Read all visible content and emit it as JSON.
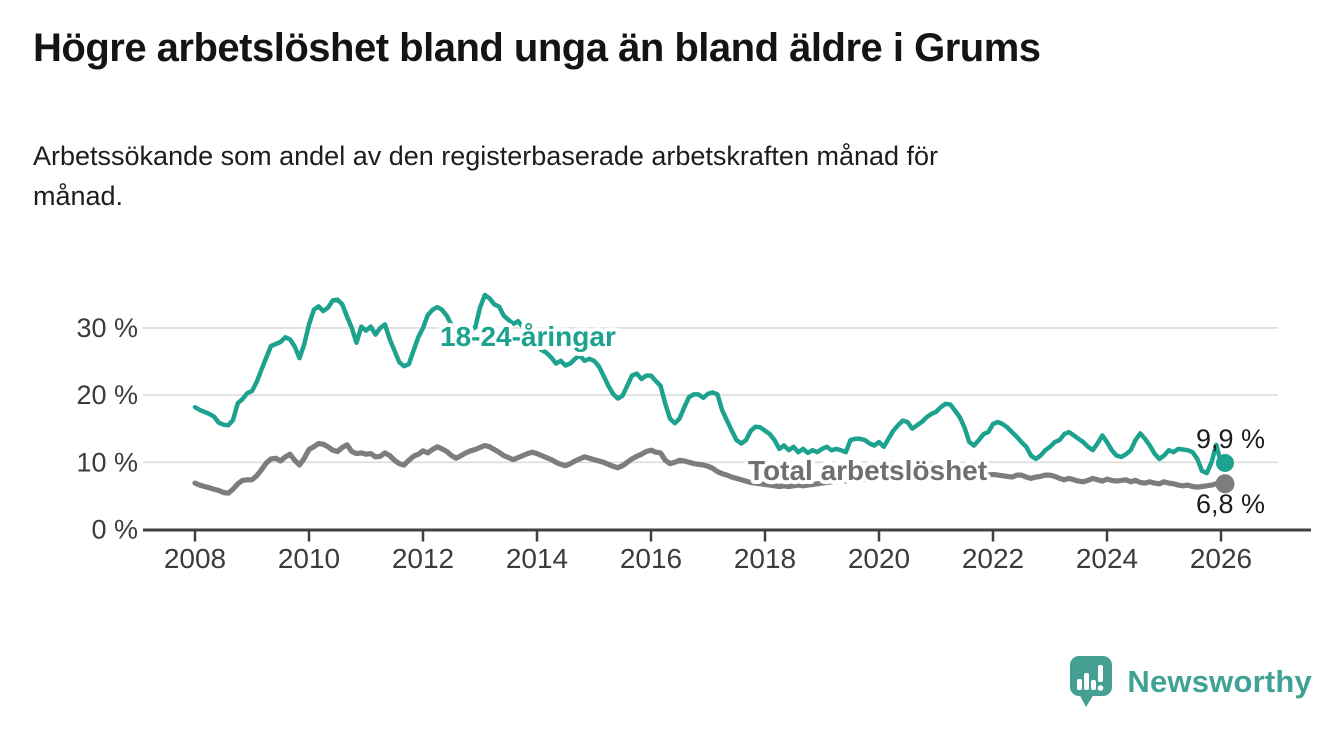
{
  "header": {
    "title": "Högre arbetslöshet bland unga än bland äldre i Grums",
    "subtitle_lines": [
      "Arbetssökande som andel av den registerbaserade arbetskraften månad för",
      "månad."
    ]
  },
  "chart_data": {
    "type": "line",
    "title": "Högre arbetslöshet bland unga än bland äldre i Grums",
    "subtitle": "Arbetssökande som andel av den registerbaserade arbetskraften månad för månad.",
    "unit": "%",
    "frequency": "monthly",
    "x_start": "2008-01",
    "x_end": "2026-01",
    "x_tick_labels": [
      "2008",
      "2010",
      "2012",
      "2014",
      "2016",
      "2018",
      "2020",
      "2022",
      "2024",
      "2026"
    ],
    "x_tick_years": [
      2008,
      2010,
      2012,
      2014,
      2016,
      2018,
      2020,
      2022,
      2024,
      2026
    ],
    "y_tick_labels": [
      "0 %",
      "10 %",
      "20 %",
      "30 %"
    ],
    "y_tick_values": [
      0,
      10,
      20,
      30
    ],
    "ylim": [
      0,
      36
    ],
    "grid": true,
    "legend_position": "inline-labels",
    "series": [
      {
        "name": "18-24-åringar",
        "color": "#1ca28e",
        "end_label": "9,9 %",
        "end_value": 9.9,
        "values": [
          18.2,
          17.8,
          17.5,
          17.2,
          16.8,
          15.9,
          15.6,
          15.5,
          16.3,
          18.8,
          19.4,
          20.3,
          20.6,
          22.0,
          23.8,
          25.6,
          27.3,
          27.6,
          27.9,
          28.6,
          28.3,
          27.2,
          25.5,
          27.6,
          30.5,
          32.7,
          33.2,
          32.5,
          33.0,
          34.1,
          34.2,
          33.5,
          31.7,
          30.0,
          27.8,
          30.2,
          29.6,
          30.2,
          29.0,
          30.0,
          30.5,
          28.3,
          26.6,
          24.9,
          24.3,
          24.6,
          26.6,
          28.6,
          30.0,
          31.9,
          32.7,
          33.1,
          32.7,
          31.8,
          30.4,
          29.0,
          28.5,
          29.1,
          29.6,
          30.1,
          33.0,
          34.9,
          34.4,
          33.5,
          33.2,
          31.8,
          31.2,
          30.6,
          31.0,
          30.2,
          29.3,
          28.4,
          27.4,
          26.7,
          26.3,
          25.6,
          24.7,
          25.1,
          24.4,
          24.7,
          25.4,
          25.9,
          25.1,
          25.4,
          25.1,
          24.3,
          22.9,
          21.4,
          20.2,
          19.5,
          19.9,
          21.4,
          22.9,
          23.2,
          22.4,
          22.9,
          22.9,
          22.1,
          21.4,
          18.7,
          16.5,
          15.8,
          16.5,
          18.2,
          19.7,
          20.1,
          20.1,
          19.6,
          20.2,
          20.4,
          20.1,
          17.7,
          16.2,
          14.7,
          13.3,
          12.8,
          13.3,
          14.7,
          15.3,
          15.2,
          14.7,
          14.2,
          13.3,
          12.0,
          12.5,
          11.8,
          12.3,
          11.5,
          12.0,
          11.4,
          11.8,
          11.5,
          12.0,
          12.3,
          11.8,
          12.0,
          11.8,
          11.5,
          13.3,
          13.5,
          13.5,
          13.3,
          12.8,
          12.5,
          13.0,
          12.3,
          13.5,
          14.7,
          15.5,
          16.2,
          16.0,
          15.0,
          15.5,
          16.0,
          16.7,
          17.2,
          17.5,
          18.2,
          18.7,
          18.6,
          17.7,
          16.7,
          15.2,
          13.0,
          12.5,
          13.3,
          14.2,
          14.5,
          15.7,
          16.0,
          15.7,
          15.2,
          14.5,
          13.8,
          13.0,
          12.3,
          11.0,
          10.5,
          11.0,
          11.8,
          12.3,
          13.0,
          13.3,
          14.2,
          14.5,
          14.0,
          13.5,
          13.0,
          12.3,
          11.8,
          12.8,
          14.0,
          13.0,
          11.8,
          11.0,
          10.8,
          11.2,
          11.8,
          13.3,
          14.3,
          13.5,
          12.5,
          11.3,
          10.5,
          11.0,
          11.8,
          11.5,
          12.0,
          11.9,
          11.8,
          11.5,
          10.5,
          8.7,
          8.4,
          10.0,
          12.6,
          9.9
        ]
      },
      {
        "name": "Total arbetslöshet",
        "color": "#7d7d7d",
        "end_label": "6,8 %",
        "end_value": 6.8,
        "values": [
          6.9,
          6.6,
          6.4,
          6.2,
          6.0,
          5.8,
          5.5,
          5.4,
          6.0,
          6.8,
          7.3,
          7.4,
          7.4,
          8.0,
          8.9,
          9.9,
          10.5,
          10.6,
          10.2,
          10.8,
          11.2,
          10.3,
          9.6,
          10.6,
          11.9,
          12.3,
          12.8,
          12.7,
          12.3,
          11.8,
          11.6,
          12.2,
          12.6,
          11.6,
          11.3,
          11.4,
          11.2,
          11.3,
          10.8,
          10.9,
          11.4,
          11.0,
          10.3,
          9.8,
          9.6,
          10.3,
          10.9,
          11.2,
          11.7,
          11.4,
          11.9,
          12.3,
          12.0,
          11.6,
          11.0,
          10.6,
          11.0,
          11.4,
          11.7,
          11.9,
          12.2,
          12.5,
          12.3,
          11.9,
          11.5,
          11.0,
          10.7,
          10.4,
          10.7,
          11.0,
          11.3,
          11.5,
          11.3,
          11.0,
          10.7,
          10.4,
          10.0,
          9.7,
          9.5,
          9.8,
          10.2,
          10.5,
          10.8,
          10.6,
          10.4,
          10.2,
          10.0,
          9.7,
          9.4,
          9.2,
          9.5,
          10.0,
          10.5,
          10.9,
          11.2,
          11.6,
          11.8,
          11.5,
          11.4,
          10.3,
          9.8,
          10.0,
          10.3,
          10.2,
          10.0,
          9.8,
          9.7,
          9.6,
          9.4,
          9.1,
          8.6,
          8.3,
          8.1,
          7.8,
          7.6,
          7.4,
          7.2,
          7.0,
          6.9,
          6.8,
          6.7,
          6.6,
          6.5,
          6.4,
          6.5,
          6.4,
          6.5,
          6.6,
          6.5,
          6.6,
          6.7,
          6.8,
          6.9,
          7.0,
          7.1,
          7.2,
          7.3,
          7.2,
          7.4,
          7.5,
          7.4,
          7.5,
          7.6,
          7.7,
          7.8,
          7.9,
          8.2,
          8.6,
          8.8,
          8.9,
          8.8,
          8.7,
          8.6,
          8.5,
          8.4,
          8.3,
          8.4,
          8.5,
          8.4,
          8.3,
          8.2,
          8.1,
          8.0,
          7.9,
          7.8,
          7.9,
          8.0,
          8.1,
          8.2,
          8.1,
          8.0,
          7.9,
          7.8,
          8.1,
          8.1,
          7.8,
          7.6,
          7.8,
          7.9,
          8.1,
          8.1,
          7.9,
          7.6,
          7.4,
          7.6,
          7.4,
          7.2,
          7.1,
          7.3,
          7.6,
          7.4,
          7.2,
          7.5,
          7.3,
          7.2,
          7.3,
          7.4,
          7.1,
          7.3,
          7.0,
          6.9,
          7.1,
          6.9,
          6.8,
          7.1,
          6.9,
          6.8,
          6.6,
          6.5,
          6.6,
          6.4,
          6.3,
          6.4,
          6.5,
          6.6,
          6.8,
          6.8
        ]
      }
    ]
  },
  "footer": {
    "logo_text": "Newsworthy",
    "logo_color": "#45a093"
  },
  "colors": {
    "youth_line": "#1ca28e",
    "total_line": "#7d7d7d",
    "axis_text": "#3c3c3c",
    "grid": "#dcdcdc",
    "title_text": "#141414"
  }
}
